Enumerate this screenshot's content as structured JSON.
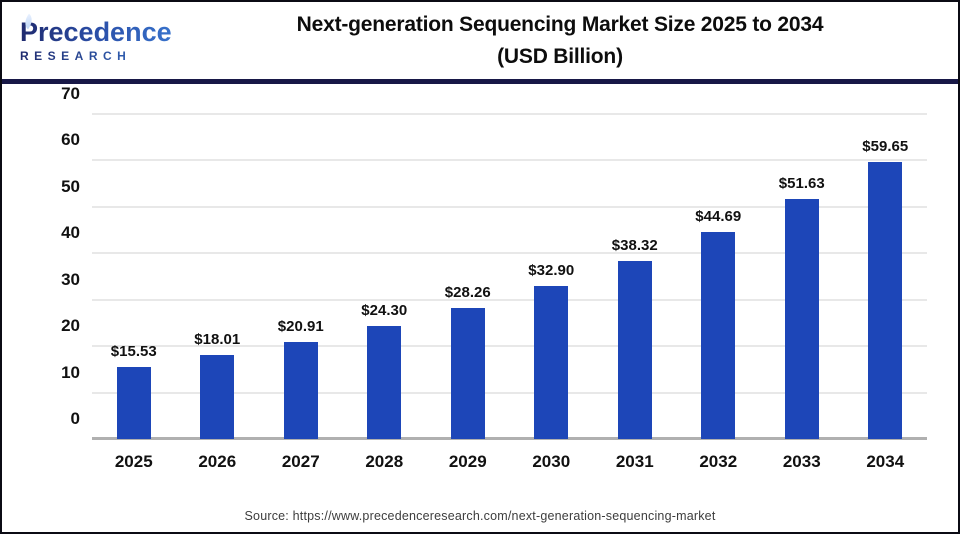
{
  "header": {
    "logo_line1": "Precedence",
    "logo_line2": "RESEARCH",
    "title_line1": "Next-generation Sequencing Market Size 2025 to 2034",
    "title_line2": "(USD Billion)"
  },
  "chart_data": {
    "type": "bar",
    "title": "Next-generation Sequencing Market Size 2025 to 2034 (USD Billion)",
    "categories": [
      "2025",
      "2026",
      "2027",
      "2028",
      "2029",
      "2030",
      "2031",
      "2032",
      "2033",
      "2034"
    ],
    "values": [
      15.53,
      18.01,
      20.91,
      24.3,
      28.26,
      32.9,
      38.32,
      44.69,
      51.63,
      59.65
    ],
    "value_labels": [
      "$15.53",
      "$18.01",
      "$20.91",
      "$24.30",
      "$28.26",
      "$32.90",
      "$38.32",
      "$44.69",
      "$51.63",
      "$59.65"
    ],
    "xlabel": "",
    "ylabel": "",
    "ylim": [
      0,
      70
    ],
    "yticks": [
      0,
      10,
      20,
      30,
      40,
      50,
      60,
      70
    ],
    "grid": true,
    "legend": "none",
    "bar_color": "#1d46b8"
  },
  "footer": {
    "source": "Source: https://www.precedenceresearch.com/next-generation-sequencing-market"
  },
  "colors": {
    "bar": "#1d46b8",
    "divider_navy": "#181847",
    "frame_border": "#0b0b14",
    "gridline": "#e8e8e8",
    "axis_line": "#b0b0b0",
    "text": "#111111",
    "source_text": "#3d3d3d",
    "logo_gradient_start": "#1f2a6e",
    "logo_gradient_end": "#3a7bd5"
  }
}
